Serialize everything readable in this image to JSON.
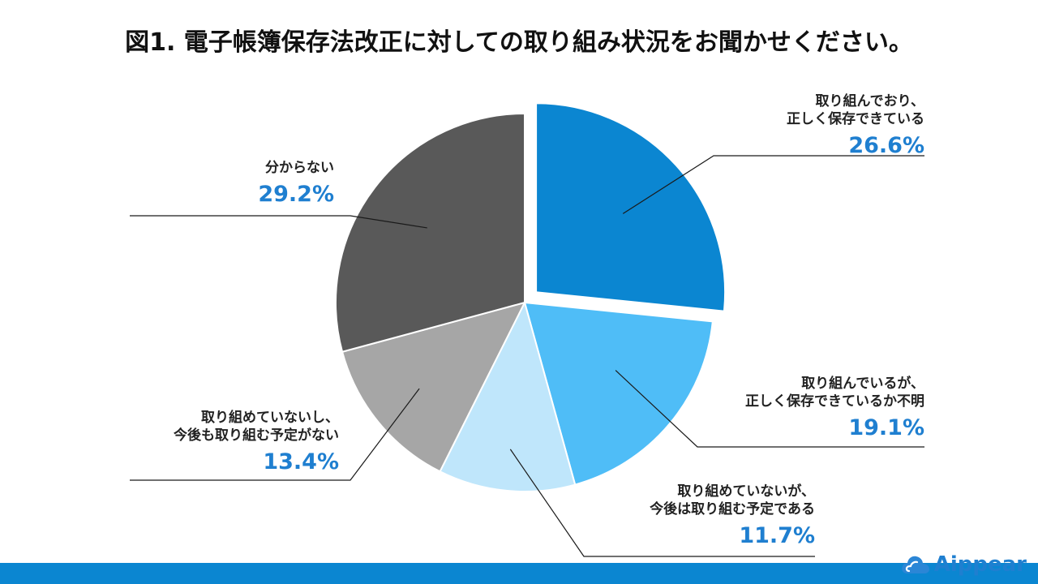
{
  "chart_data": {
    "type": "pie",
    "title": "図1.  電子帳簿保存法改正に対しての取り組み状況をお聞かせください。",
    "slices": [
      {
        "label_lines": [
          "取り組んでおり、",
          "正しく保存できている"
        ],
        "value": 26.6,
        "value_label": "26.6%",
        "color": "#0b86d1",
        "exploded": true
      },
      {
        "label_lines": [
          "取り組んでいるが、",
          "正しく保存できているか不明"
        ],
        "value": 19.1,
        "value_label": "19.1%",
        "color": "#4fbdf7",
        "exploded": false
      },
      {
        "label_lines": [
          "取り組めていないが、",
          "今後は取り組む予定である"
        ],
        "value": 11.7,
        "value_label": "11.7%",
        "color": "#bfe6fb",
        "exploded": false
      },
      {
        "label_lines": [
          "取り組めていないし、",
          "今後も取り組む予定がない"
        ],
        "value": 13.4,
        "value_label": "13.4%",
        "color": "#a6a6a6",
        "exploded": false
      },
      {
        "label_lines": [
          "分からない"
        ],
        "value": 29.2,
        "value_label": "29.2%",
        "color": "#595959",
        "exploded": false
      }
    ],
    "value_label_color": "#1f7fd0",
    "start": "12 o'clock",
    "direction": "clockwise"
  },
  "footer": {
    "bar_color": "#0b86d1",
    "logo_text": "Aippear",
    "logo_icon": "cloud-icon"
  }
}
